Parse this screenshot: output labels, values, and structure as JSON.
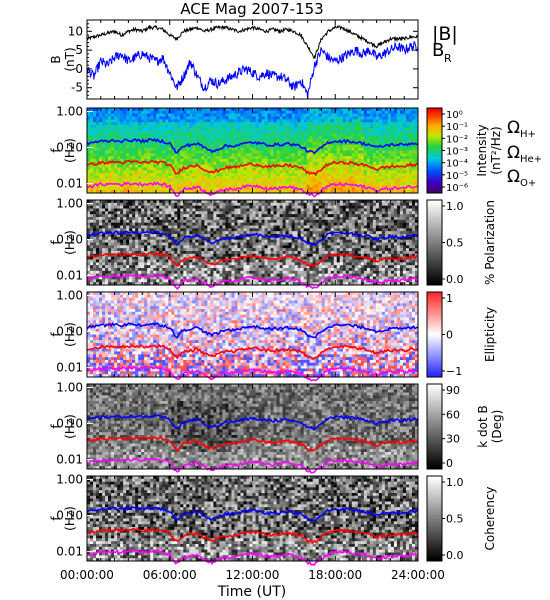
{
  "figure": {
    "title": "ACE Mag 2007-153",
    "x_tick_labels": [
      "00:00:00",
      "06:00:00",
      "12:00:00",
      "18:00:00",
      "24:00:00"
    ],
    "xlabel": "Time (UT)"
  },
  "chart_data": [
    {
      "id": "b-field",
      "type": "line",
      "ylabel": "B",
      "yunit": "(nT)",
      "ylim": [
        -8,
        13
      ],
      "y_tick_labels": [
        "10",
        "5",
        "0",
        "-5"
      ],
      "xlim_hours": [
        0,
        24
      ],
      "legend": [
        {
          "label": "|B|",
          "color": "#000000"
        },
        {
          "label": "B",
          "sub": "R",
          "color": "#0000ff"
        }
      ],
      "series": [
        {
          "name": "|B|",
          "color": "#000000",
          "x": [
            0,
            0.5,
            1,
            1.5,
            2,
            2.5,
            3,
            3.5,
            4,
            4.5,
            5,
            5.5,
            6,
            6.5,
            7,
            7.5,
            8,
            8.5,
            9,
            9.5,
            10,
            10.5,
            11,
            11.5,
            12,
            12.5,
            13,
            13.5,
            14,
            14.5,
            15,
            15.5,
            16,
            16.5,
            17,
            17.5,
            18,
            18.5,
            19,
            19.5,
            20,
            20.5,
            21,
            21.5,
            22,
            22.5,
            23,
            23.5,
            24
          ],
          "y": [
            8,
            8.5,
            9,
            9.5,
            10,
            9,
            10,
            10.5,
            10,
            11,
            11,
            10.5,
            9,
            8,
            10,
            10.5,
            11,
            10,
            10.5,
            11,
            11,
            10.5,
            10,
            10.5,
            11,
            10.5,
            10,
            10.5,
            10,
            10.5,
            10,
            9,
            6,
            3,
            8,
            10,
            11,
            11,
            10,
            9,
            8,
            7,
            6,
            7,
            8,
            8,
            8,
            8.5,
            8.5
          ]
        },
        {
          "name": "B",
          "sub": "R",
          "color": "#0000ff",
          "x": [
            0,
            0.5,
            1,
            1.5,
            2,
            2.5,
            3,
            3.5,
            4,
            4.5,
            5,
            5.5,
            6,
            6.5,
            7,
            7.5,
            8,
            8.5,
            9,
            9.5,
            10,
            10.5,
            11,
            11.5,
            12,
            12.5,
            13,
            13.5,
            14,
            14.5,
            15,
            15.5,
            16,
            16.5,
            17,
            17.5,
            18,
            18.5,
            19,
            19.5,
            20,
            20.5,
            21,
            21.5,
            22,
            22.5,
            23,
            23.5,
            24
          ],
          "y": [
            0,
            -2,
            2,
            1,
            3,
            4,
            2,
            3,
            4,
            3,
            2,
            3,
            -1,
            -5,
            -2,
            2,
            -2,
            -5,
            -3,
            -4,
            -3,
            -2,
            -1,
            0,
            -1,
            -2,
            -1,
            -2,
            -2,
            -3,
            -5,
            -3,
            -7,
            1,
            5,
            3,
            2,
            3,
            4,
            5,
            4,
            5,
            3,
            4,
            5,
            6,
            5,
            6,
            6
          ]
        }
      ]
    },
    {
      "id": "intensity",
      "type": "heatmap",
      "colormap": "rainbow",
      "ylabel": "f",
      "yunit": "(Hz)",
      "yscale": "log",
      "y_tick_labels": [
        "1.00",
        "0.10",
        "0.01"
      ],
      "colorbar_label": "Intensity",
      "colorbar_unit": "(nT²/Hz)",
      "colorbar_ticks": [
        "10⁰",
        "10⁻¹",
        "10⁻²",
        "10⁻³",
        "10⁻⁴",
        "10⁻⁵",
        "10⁻⁶"
      ],
      "legend": [
        {
          "label": "Ω",
          "sub": "H+",
          "color": "#0000ff"
        },
        {
          "label": "Ω",
          "sub": "He+",
          "color": "#ff0000"
        },
        {
          "label": "Ω",
          "sub": "O+",
          "color": "#ff00ff"
        }
      ]
    },
    {
      "id": "polarization",
      "type": "heatmap",
      "colormap": "gray",
      "ylabel": "f",
      "yunit": "(Hz)",
      "yscale": "log",
      "y_tick_labels": [
        "1.00",
        "0.10",
        "0.01"
      ],
      "colorbar_label": "% Polarization",
      "colorbar_unit": "",
      "colorbar_ticks": [
        "1.0",
        "0.5",
        "0.0"
      ]
    },
    {
      "id": "ellipticity",
      "type": "heatmap",
      "colormap": "bwr",
      "ylabel": "f",
      "yunit": "(Hz)",
      "yscale": "log",
      "y_tick_labels": [
        "1.00",
        "0.10",
        "0.01"
      ],
      "colorbar_label": "Ellipticity",
      "colorbar_unit": "",
      "colorbar_ticks": [
        "1",
        "0",
        "−1"
      ]
    },
    {
      "id": "k-dot-b",
      "type": "heatmap",
      "colormap": "gray",
      "ylabel": "f",
      "yunit": "(Hz)",
      "yscale": "log",
      "y_tick_labels": [
        "1.00",
        "0.10",
        "0.01"
      ],
      "colorbar_label": "k dot B",
      "colorbar_unit": "(Deg)",
      "colorbar_ticks": [
        "90",
        "60",
        "30",
        "0"
      ]
    },
    {
      "id": "coherency",
      "type": "heatmap",
      "colormap": "gray",
      "ylabel": "f",
      "yunit": "(Hz)",
      "yscale": "log",
      "y_tick_labels": [
        "1.00",
        "0.10",
        "0.01"
      ],
      "colorbar_label": "Coherency",
      "colorbar_unit": "",
      "colorbar_ticks": [
        "1.0",
        "0.5",
        "0.0"
      ]
    }
  ],
  "gyrofrequency_lines": {
    "x_hours": [
      0,
      0.5,
      1,
      1.5,
      2,
      2.5,
      3,
      3.5,
      4,
      4.5,
      5,
      5.5,
      6,
      6.5,
      7,
      7.5,
      8,
      8.5,
      9,
      9.5,
      10,
      10.5,
      11,
      11.5,
      12,
      12.5,
      13,
      13.5,
      14,
      14.5,
      15,
      15.5,
      16,
      16.5,
      17,
      17.5,
      18,
      18.5,
      19,
      19.5,
      20,
      20.5,
      21,
      21.5,
      22,
      22.5,
      23,
      23.5,
      24
    ],
    "series": [
      {
        "name": "H+",
        "color": "#0000ff",
        "f_hz": [
          0.13,
          0.14,
          0.15,
          0.15,
          0.16,
          0.15,
          0.16,
          0.16,
          0.15,
          0.16,
          0.16,
          0.15,
          0.13,
          0.07,
          0.11,
          0.12,
          0.13,
          0.1,
          0.08,
          0.09,
          0.11,
          0.11,
          0.12,
          0.13,
          0.14,
          0.13,
          0.12,
          0.12,
          0.12,
          0.13,
          0.12,
          0.11,
          0.08,
          0.07,
          0.1,
          0.14,
          0.15,
          0.15,
          0.15,
          0.14,
          0.13,
          0.12,
          0.1,
          0.11,
          0.12,
          0.12,
          0.12,
          0.13,
          0.13
        ]
      },
      {
        "name": "He+",
        "color": "#ff0000",
        "f_hz": [
          0.033,
          0.035,
          0.038,
          0.038,
          0.04,
          0.038,
          0.04,
          0.04,
          0.038,
          0.04,
          0.04,
          0.038,
          0.033,
          0.018,
          0.028,
          0.03,
          0.033,
          0.025,
          0.02,
          0.023,
          0.028,
          0.028,
          0.03,
          0.033,
          0.035,
          0.033,
          0.03,
          0.03,
          0.03,
          0.033,
          0.03,
          0.028,
          0.02,
          0.018,
          0.025,
          0.035,
          0.038,
          0.038,
          0.038,
          0.035,
          0.033,
          0.03,
          0.025,
          0.028,
          0.03,
          0.03,
          0.03,
          0.033,
          0.033
        ]
      },
      {
        "name": "O+",
        "color": "#ff00ff",
        "f_hz": [
          0.0083,
          0.0088,
          0.0095,
          0.0095,
          0.01,
          0.0095,
          0.01,
          0.01,
          0.0095,
          0.01,
          0.01,
          0.0095,
          0.0083,
          0.0045,
          0.007,
          0.0075,
          0.0083,
          0.0063,
          0.005,
          0.0058,
          0.007,
          0.007,
          0.0075,
          0.0083,
          0.0088,
          0.0083,
          0.0075,
          0.0075,
          0.0075,
          0.0083,
          0.0075,
          0.007,
          0.005,
          0.0045,
          0.0063,
          0.0088,
          0.0095,
          0.0095,
          0.0095,
          0.0088,
          0.0083,
          0.0075,
          0.0063,
          0.007,
          0.0075,
          0.0075,
          0.0075,
          0.0083,
          0.0083
        ]
      }
    ]
  }
}
